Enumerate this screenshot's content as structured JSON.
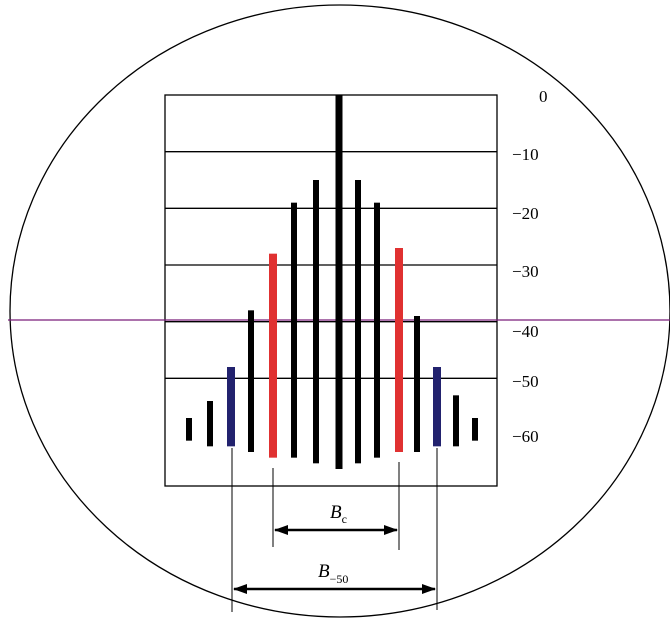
{
  "colors": {
    "stroke": "#000000",
    "bar_default": "#000000",
    "bar_red": "#e03131",
    "bar_blue": "#22226e",
    "threshold_line": "#7a1f7a"
  },
  "y_axis": {
    "ticks": [
      "0",
      "−10",
      "−20",
      "−30",
      "−40",
      "−50",
      "−60"
    ]
  },
  "bars": [
    {
      "color": "default",
      "top_db": -57,
      "bottom_db": -61
    },
    {
      "color": "default",
      "top_db": -54,
      "bottom_db": -62
    },
    {
      "color": "blue",
      "top_db": -48,
      "bottom_db": -62
    },
    {
      "color": "default",
      "top_db": -38,
      "bottom_db": -63
    },
    {
      "color": "red",
      "top_db": -28,
      "bottom_db": -64
    },
    {
      "color": "default",
      "top_db": -19,
      "bottom_db": -64
    },
    {
      "color": "default",
      "top_db": -15,
      "bottom_db": -65
    },
    {
      "color": "default",
      "top_db": 0,
      "bottom_db": -66
    },
    {
      "color": "default",
      "top_db": -15,
      "bottom_db": -65
    },
    {
      "color": "default",
      "top_db": -19,
      "bottom_db": -64
    },
    {
      "color": "red",
      "top_db": -27,
      "bottom_db": -63
    },
    {
      "color": "default",
      "top_db": -39,
      "bottom_db": -63
    },
    {
      "color": "blue",
      "top_db": -48,
      "bottom_db": -62
    },
    {
      "color": "default",
      "top_db": -53,
      "bottom_db": -62
    },
    {
      "color": "default",
      "top_db": -57,
      "bottom_db": -61
    }
  ],
  "dimensions": {
    "bc": {
      "label": "B",
      "sub": "c"
    },
    "b50": {
      "label": "B",
      "sub": "−50"
    }
  }
}
